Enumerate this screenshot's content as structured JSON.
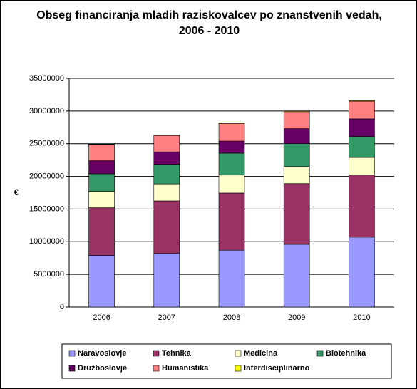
{
  "chart_data": {
    "type": "stacked-bar",
    "title": "Obseg financiranja mladih raziskovalcev po znanstvenih vedah, 2006 - 2010",
    "y_label": "€",
    "categories": [
      "2006",
      "2007",
      "2008",
      "2009",
      "2010"
    ],
    "series": [
      {
        "name": "Naravoslovje",
        "color": "#9999ff",
        "values": [
          7900000,
          8200000,
          8700000,
          9600000,
          10700000
        ]
      },
      {
        "name": "Tehnika",
        "color": "#993366",
        "values": [
          7300000,
          8050000,
          8750000,
          9300000,
          9500000
        ]
      },
      {
        "name": "Medicina",
        "color": "#ffffcc",
        "values": [
          2500000,
          2600000,
          2750000,
          2600000,
          2700000
        ]
      },
      {
        "name": "Biotehnika",
        "color": "#339966",
        "values": [
          2700000,
          3000000,
          3350000,
          3500000,
          3200000
        ]
      },
      {
        "name": "Družboslovje",
        "color": "#660066",
        "values": [
          2000000,
          1900000,
          1850000,
          2300000,
          2700000
        ]
      },
      {
        "name": "Humanistika",
        "color": "#ff8080",
        "values": [
          2500000,
          2500000,
          2700000,
          2600000,
          2700000
        ]
      },
      {
        "name": "Interdisciplinarno",
        "color": "#ffff00",
        "values": [
          50000,
          50000,
          100000,
          100000,
          100000
        ]
      }
    ],
    "ylim": [
      0,
      35000000
    ],
    "yticks": [
      0,
      5000000,
      10000000,
      15000000,
      20000000,
      25000000,
      30000000,
      35000000
    ],
    "grid": true
  }
}
